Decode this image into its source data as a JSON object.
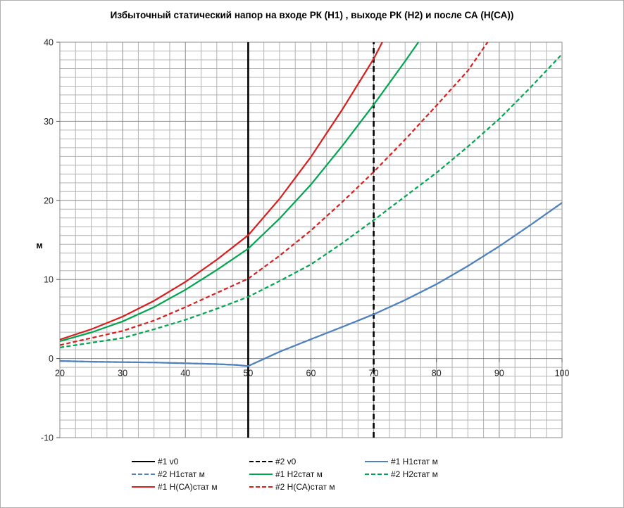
{
  "chart_data": {
    "type": "line",
    "title": "Избыточный статический напор на входе РК (Н1) , выходе РК (Н2) и после СА (Н(СА))",
    "xlabel": "",
    "ylabel": "м",
    "x_axis": {
      "min": 20,
      "max": 100,
      "major_unit": 10,
      "minor_unit": 2.5,
      "tick_labels": [
        "20",
        "30",
        "40",
        "50",
        "60",
        "70",
        "80",
        "90",
        "100"
      ]
    },
    "y_axis": {
      "min": -10,
      "max": 40,
      "major_unit": 10,
      "minor_divisions_per_major": 9,
      "tick_labels": [
        "-10",
        "0",
        "10",
        "20",
        "30",
        "40"
      ]
    },
    "grid": {
      "minor_color": "#b3b3b3",
      "major_color": "#8c8c8c",
      "border_color": "#8c8c8c",
      "tick_color": "#555555",
      "on": true
    },
    "axis_text_color": "#262626",
    "legend_position": "bottom",
    "legend_columns": 3,
    "series": [
      {
        "id": "v0-1",
        "name": "#1 v0",
        "color": "#000000",
        "dash": "solid",
        "width": 2.6,
        "points": [
          [
            50,
            -10
          ],
          [
            50,
            40
          ]
        ]
      },
      {
        "id": "v0-2",
        "name": "#2 v0",
        "color": "#000000",
        "dash": "dashed",
        "width": 2.6,
        "points": [
          [
            70,
            -10
          ],
          [
            70,
            40
          ]
        ]
      },
      {
        "id": "h1-1",
        "name": "#1 Н1стат м",
        "color": "#4f81bd",
        "dash": "solid",
        "width": 2.2,
        "points": [
          [
            20,
            -0.3
          ],
          [
            25,
            -0.4
          ],
          [
            30,
            -0.45
          ],
          [
            35,
            -0.5
          ],
          [
            40,
            -0.6
          ],
          [
            45,
            -0.7
          ],
          [
            48,
            -0.8
          ],
          [
            50,
            -0.95
          ],
          [
            55,
            0.85
          ],
          [
            60,
            2.45
          ],
          [
            65,
            4.0
          ],
          [
            70,
            5.6
          ],
          [
            75,
            7.4
          ],
          [
            80,
            9.4
          ],
          [
            85,
            11.7
          ],
          [
            90,
            14.2
          ],
          [
            95,
            16.9
          ],
          [
            100,
            19.7
          ]
        ]
      },
      {
        "id": "h1-2",
        "name": "#2 Н1стат м",
        "color": "#4f81bd",
        "dash": "dashed",
        "width": 2.2,
        "points": [
          [
            20,
            -0.3
          ],
          [
            25,
            -0.4
          ],
          [
            30,
            -0.45
          ],
          [
            35,
            -0.5
          ],
          [
            40,
            -0.6
          ],
          [
            45,
            -0.7
          ],
          [
            48,
            -0.8
          ],
          [
            50,
            -0.95
          ],
          [
            55,
            0.85
          ],
          [
            60,
            2.45
          ],
          [
            65,
            4.0
          ],
          [
            70,
            5.6
          ],
          [
            75,
            7.4
          ],
          [
            80,
            9.4
          ],
          [
            85,
            11.7
          ],
          [
            90,
            14.2
          ],
          [
            95,
            16.9
          ],
          [
            100,
            19.7
          ]
        ]
      },
      {
        "id": "h2-1",
        "name": "#1 Н2стат м",
        "color": "#00a550",
        "dash": "solid",
        "width": 2.2,
        "points": [
          [
            20,
            2.2
          ],
          [
            25,
            3.3
          ],
          [
            30,
            4.7
          ],
          [
            35,
            6.5
          ],
          [
            40,
            8.7
          ],
          [
            45,
            11.2
          ],
          [
            50,
            13.9
          ],
          [
            55,
            17.7
          ],
          [
            60,
            22.0
          ],
          [
            65,
            26.9
          ],
          [
            70,
            32.1
          ],
          [
            75,
            37.6
          ],
          [
            78,
            41.0
          ]
        ]
      },
      {
        "id": "h2-2",
        "name": "#2 Н2стат м",
        "color": "#00a550",
        "dash": "dashed",
        "width": 2.2,
        "points": [
          [
            20,
            1.4
          ],
          [
            25,
            2.0
          ],
          [
            30,
            2.6
          ],
          [
            35,
            3.7
          ],
          [
            40,
            4.9
          ],
          [
            45,
            6.3
          ],
          [
            50,
            7.8
          ],
          [
            55,
            9.8
          ],
          [
            60,
            11.9
          ],
          [
            65,
            14.6
          ],
          [
            70,
            17.5
          ],
          [
            75,
            20.5
          ],
          [
            80,
            23.5
          ],
          [
            85,
            26.8
          ],
          [
            90,
            30.3
          ],
          [
            95,
            34.3
          ],
          [
            100,
            38.5
          ]
        ]
      },
      {
        "id": "hca-1",
        "name": "#1 Н(СА)стат м",
        "color": "#d81e1e",
        "dash": "solid",
        "width": 2.2,
        "points": [
          [
            20,
            2.4
          ],
          [
            25,
            3.7
          ],
          [
            30,
            5.3
          ],
          [
            35,
            7.3
          ],
          [
            40,
            9.7
          ],
          [
            45,
            12.5
          ],
          [
            50,
            15.6
          ],
          [
            55,
            20.2
          ],
          [
            60,
            25.5
          ],
          [
            65,
            31.5
          ],
          [
            70,
            37.9
          ],
          [
            72,
            41.0
          ]
        ]
      },
      {
        "id": "hca-2",
        "name": "#2 Н(СА)стат м",
        "color": "#d81e1e",
        "dash": "dashed",
        "width": 2.2,
        "points": [
          [
            20,
            1.7
          ],
          [
            25,
            2.6
          ],
          [
            30,
            3.5
          ],
          [
            35,
            4.8
          ],
          [
            40,
            6.5
          ],
          [
            45,
            8.3
          ],
          [
            50,
            10.1
          ],
          [
            55,
            13.0
          ],
          [
            60,
            16.2
          ],
          [
            65,
            19.8
          ],
          [
            70,
            23.6
          ],
          [
            75,
            27.7
          ],
          [
            80,
            32.0
          ],
          [
            85,
            36.4
          ],
          [
            89,
            41.0
          ]
        ]
      }
    ],
    "draw_order": [
      "v0-1",
      "v0-2",
      "h1-2",
      "h1-1",
      "h2-1",
      "h2-2",
      "hca-1",
      "hca-2"
    ]
  }
}
